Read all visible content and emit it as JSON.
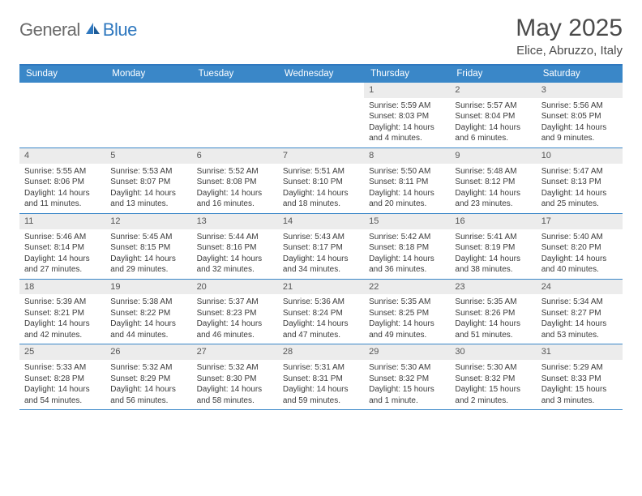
{
  "brand": {
    "part1": "General",
    "part2": "Blue"
  },
  "title": "May 2025",
  "location": "Elice, Abruzzo, Italy",
  "colors": {
    "header_bar": "#3a87c8",
    "header_rule": "#2f78bf",
    "daynum_bg": "#ececec",
    "text": "#3b3b3b",
    "logo_gray": "#6b6b6b",
    "logo_blue": "#2f78bf"
  },
  "weekdays": [
    "Sunday",
    "Monday",
    "Tuesday",
    "Wednesday",
    "Thursday",
    "Friday",
    "Saturday"
  ],
  "weeks": [
    [
      {
        "n": "",
        "sunrise": "",
        "sunset": "",
        "daylight": ""
      },
      {
        "n": "",
        "sunrise": "",
        "sunset": "",
        "daylight": ""
      },
      {
        "n": "",
        "sunrise": "",
        "sunset": "",
        "daylight": ""
      },
      {
        "n": "",
        "sunrise": "",
        "sunset": "",
        "daylight": ""
      },
      {
        "n": "1",
        "sunrise": "Sunrise: 5:59 AM",
        "sunset": "Sunset: 8:03 PM",
        "daylight": "Daylight: 14 hours and 4 minutes."
      },
      {
        "n": "2",
        "sunrise": "Sunrise: 5:57 AM",
        "sunset": "Sunset: 8:04 PM",
        "daylight": "Daylight: 14 hours and 6 minutes."
      },
      {
        "n": "3",
        "sunrise": "Sunrise: 5:56 AM",
        "sunset": "Sunset: 8:05 PM",
        "daylight": "Daylight: 14 hours and 9 minutes."
      }
    ],
    [
      {
        "n": "4",
        "sunrise": "Sunrise: 5:55 AM",
        "sunset": "Sunset: 8:06 PM",
        "daylight": "Daylight: 14 hours and 11 minutes."
      },
      {
        "n": "5",
        "sunrise": "Sunrise: 5:53 AM",
        "sunset": "Sunset: 8:07 PM",
        "daylight": "Daylight: 14 hours and 13 minutes."
      },
      {
        "n": "6",
        "sunrise": "Sunrise: 5:52 AM",
        "sunset": "Sunset: 8:08 PM",
        "daylight": "Daylight: 14 hours and 16 minutes."
      },
      {
        "n": "7",
        "sunrise": "Sunrise: 5:51 AM",
        "sunset": "Sunset: 8:10 PM",
        "daylight": "Daylight: 14 hours and 18 minutes."
      },
      {
        "n": "8",
        "sunrise": "Sunrise: 5:50 AM",
        "sunset": "Sunset: 8:11 PM",
        "daylight": "Daylight: 14 hours and 20 minutes."
      },
      {
        "n": "9",
        "sunrise": "Sunrise: 5:48 AM",
        "sunset": "Sunset: 8:12 PM",
        "daylight": "Daylight: 14 hours and 23 minutes."
      },
      {
        "n": "10",
        "sunrise": "Sunrise: 5:47 AM",
        "sunset": "Sunset: 8:13 PM",
        "daylight": "Daylight: 14 hours and 25 minutes."
      }
    ],
    [
      {
        "n": "11",
        "sunrise": "Sunrise: 5:46 AM",
        "sunset": "Sunset: 8:14 PM",
        "daylight": "Daylight: 14 hours and 27 minutes."
      },
      {
        "n": "12",
        "sunrise": "Sunrise: 5:45 AM",
        "sunset": "Sunset: 8:15 PM",
        "daylight": "Daylight: 14 hours and 29 minutes."
      },
      {
        "n": "13",
        "sunrise": "Sunrise: 5:44 AM",
        "sunset": "Sunset: 8:16 PM",
        "daylight": "Daylight: 14 hours and 32 minutes."
      },
      {
        "n": "14",
        "sunrise": "Sunrise: 5:43 AM",
        "sunset": "Sunset: 8:17 PM",
        "daylight": "Daylight: 14 hours and 34 minutes."
      },
      {
        "n": "15",
        "sunrise": "Sunrise: 5:42 AM",
        "sunset": "Sunset: 8:18 PM",
        "daylight": "Daylight: 14 hours and 36 minutes."
      },
      {
        "n": "16",
        "sunrise": "Sunrise: 5:41 AM",
        "sunset": "Sunset: 8:19 PM",
        "daylight": "Daylight: 14 hours and 38 minutes."
      },
      {
        "n": "17",
        "sunrise": "Sunrise: 5:40 AM",
        "sunset": "Sunset: 8:20 PM",
        "daylight": "Daylight: 14 hours and 40 minutes."
      }
    ],
    [
      {
        "n": "18",
        "sunrise": "Sunrise: 5:39 AM",
        "sunset": "Sunset: 8:21 PM",
        "daylight": "Daylight: 14 hours and 42 minutes."
      },
      {
        "n": "19",
        "sunrise": "Sunrise: 5:38 AM",
        "sunset": "Sunset: 8:22 PM",
        "daylight": "Daylight: 14 hours and 44 minutes."
      },
      {
        "n": "20",
        "sunrise": "Sunrise: 5:37 AM",
        "sunset": "Sunset: 8:23 PM",
        "daylight": "Daylight: 14 hours and 46 minutes."
      },
      {
        "n": "21",
        "sunrise": "Sunrise: 5:36 AM",
        "sunset": "Sunset: 8:24 PM",
        "daylight": "Daylight: 14 hours and 47 minutes."
      },
      {
        "n": "22",
        "sunrise": "Sunrise: 5:35 AM",
        "sunset": "Sunset: 8:25 PM",
        "daylight": "Daylight: 14 hours and 49 minutes."
      },
      {
        "n": "23",
        "sunrise": "Sunrise: 5:35 AM",
        "sunset": "Sunset: 8:26 PM",
        "daylight": "Daylight: 14 hours and 51 minutes."
      },
      {
        "n": "24",
        "sunrise": "Sunrise: 5:34 AM",
        "sunset": "Sunset: 8:27 PM",
        "daylight": "Daylight: 14 hours and 53 minutes."
      }
    ],
    [
      {
        "n": "25",
        "sunrise": "Sunrise: 5:33 AM",
        "sunset": "Sunset: 8:28 PM",
        "daylight": "Daylight: 14 hours and 54 minutes."
      },
      {
        "n": "26",
        "sunrise": "Sunrise: 5:32 AM",
        "sunset": "Sunset: 8:29 PM",
        "daylight": "Daylight: 14 hours and 56 minutes."
      },
      {
        "n": "27",
        "sunrise": "Sunrise: 5:32 AM",
        "sunset": "Sunset: 8:30 PM",
        "daylight": "Daylight: 14 hours and 58 minutes."
      },
      {
        "n": "28",
        "sunrise": "Sunrise: 5:31 AM",
        "sunset": "Sunset: 8:31 PM",
        "daylight": "Daylight: 14 hours and 59 minutes."
      },
      {
        "n": "29",
        "sunrise": "Sunrise: 5:30 AM",
        "sunset": "Sunset: 8:32 PM",
        "daylight": "Daylight: 15 hours and 1 minute."
      },
      {
        "n": "30",
        "sunrise": "Sunrise: 5:30 AM",
        "sunset": "Sunset: 8:32 PM",
        "daylight": "Daylight: 15 hours and 2 minutes."
      },
      {
        "n": "31",
        "sunrise": "Sunrise: 5:29 AM",
        "sunset": "Sunset: 8:33 PM",
        "daylight": "Daylight: 15 hours and 3 minutes."
      }
    ]
  ]
}
